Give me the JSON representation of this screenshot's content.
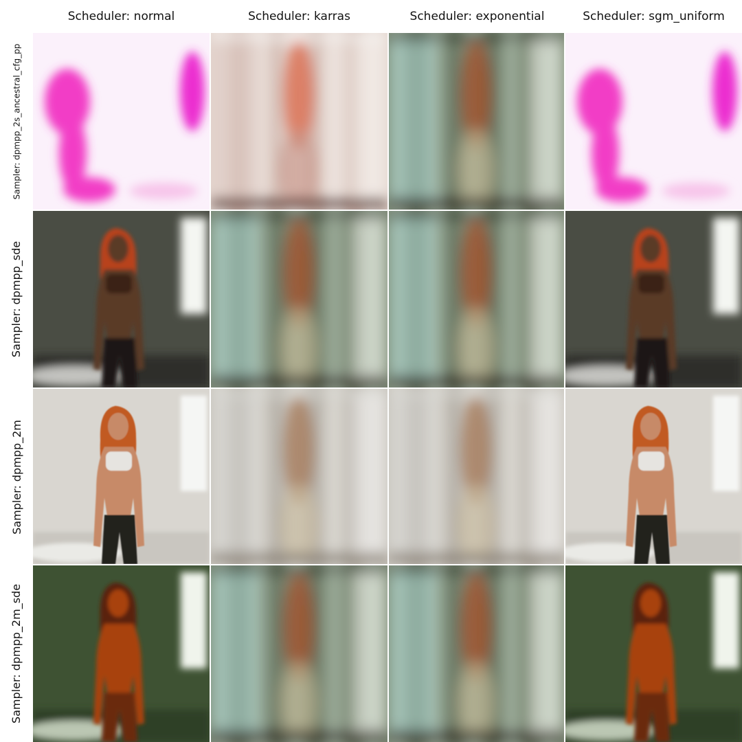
{
  "columns": [
    {
      "label": "Scheduler: normal"
    },
    {
      "label": "Scheduler: karras"
    },
    {
      "label": "Scheduler: exponential"
    },
    {
      "label": "Scheduler: sgm_uniform"
    }
  ],
  "rows": [
    {
      "label": "Sampler: dpmpp_2s_ancestral_cfg_pp"
    },
    {
      "label": "Sampler: dpmpp_sde"
    },
    {
      "label": "Sampler: dpmpp_2m"
    },
    {
      "label": "Sampler: dpmpp_2m_sde"
    }
  ],
  "cells": [
    [
      "magenta-blobs",
      "blurred-curtain-pink",
      "blurred-curtain-teal",
      "magenta-blobs"
    ],
    [
      "woman-dark-room",
      "blurred-curtain-teal",
      "blurred-curtain-teal",
      "woman-dark-room"
    ],
    [
      "woman-bright-room",
      "blurred-curtain-grey",
      "blurred-curtain-grey",
      "woman-bright-room"
    ],
    [
      "woman-green-room",
      "blurred-curtain-teal",
      "blurred-curtain-teal",
      "woman-green-room"
    ]
  ]
}
